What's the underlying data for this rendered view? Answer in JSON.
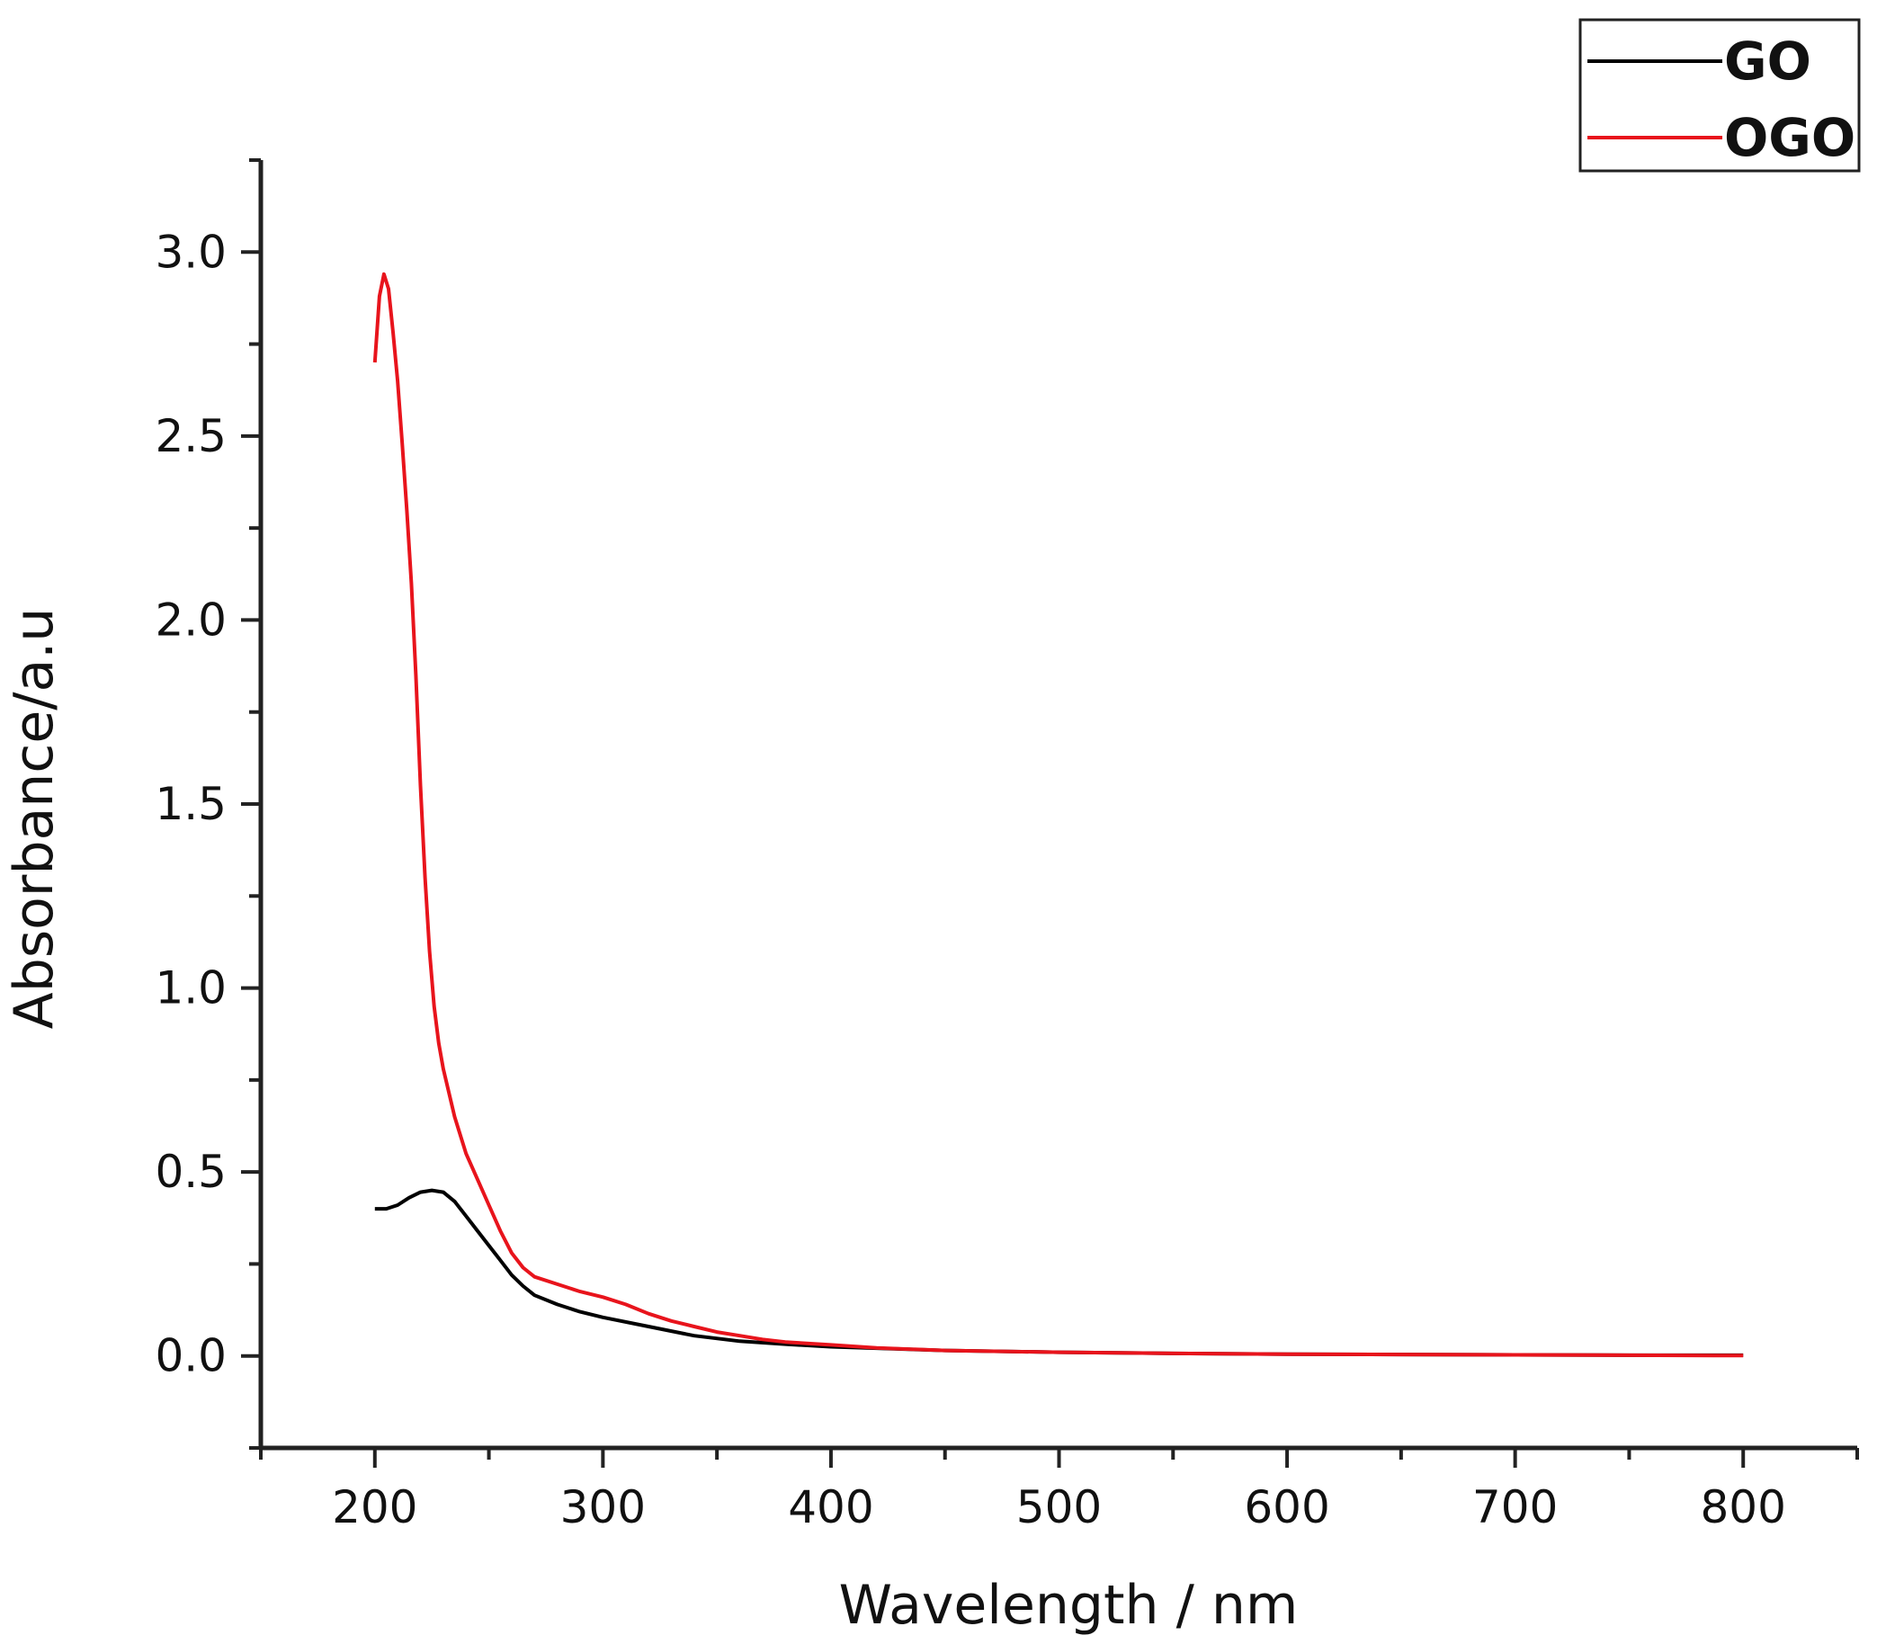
{
  "chart_data": {
    "type": "line",
    "xlabel": "Wavelength  / nm",
    "ylabel": "Absorbance/a.u",
    "xlim": [
      150,
      850
    ],
    "ylim": [
      -0.25,
      3.25
    ],
    "x_ticks": [
      200,
      300,
      400,
      500,
      600,
      700,
      800
    ],
    "x_tick_labels": [
      "200",
      "300",
      "400",
      "500",
      "600",
      "700",
      "800"
    ],
    "y_ticks": [
      0.0,
      0.5,
      1.0,
      1.5,
      2.0,
      2.5,
      3.0
    ],
    "y_tick_labels": [
      "0.0",
      "0.5",
      "1.0",
      "1.5",
      "2.0",
      "2.5",
      "3.0"
    ],
    "grid": false,
    "legend_position": "top-right",
    "series": [
      {
        "name": "GO",
        "color": "#000000",
        "points": [
          [
            200,
            0.4
          ],
          [
            205,
            0.4
          ],
          [
            210,
            0.41
          ],
          [
            215,
            0.43
          ],
          [
            220,
            0.445
          ],
          [
            225,
            0.45
          ],
          [
            230,
            0.445
          ],
          [
            235,
            0.42
          ],
          [
            240,
            0.38
          ],
          [
            245,
            0.34
          ],
          [
            250,
            0.3
          ],
          [
            255,
            0.26
          ],
          [
            260,
            0.22
          ],
          [
            265,
            0.19
          ],
          [
            270,
            0.165
          ],
          [
            280,
            0.14
          ],
          [
            290,
            0.12
          ],
          [
            300,
            0.105
          ],
          [
            320,
            0.08
          ],
          [
            340,
            0.055
          ],
          [
            360,
            0.04
          ],
          [
            380,
            0.032
          ],
          [
            400,
            0.025
          ],
          [
            450,
            0.015
          ],
          [
            500,
            0.01
          ],
          [
            550,
            0.007
          ],
          [
            600,
            0.005
          ],
          [
            650,
            0.004
          ],
          [
            700,
            0.003
          ],
          [
            750,
            0.002
          ],
          [
            800,
            0.002
          ]
        ]
      },
      {
        "name": "OGO",
        "color": "#e8141c",
        "points": [
          [
            200,
            2.7
          ],
          [
            202,
            2.88
          ],
          [
            204,
            2.94
          ],
          [
            206,
            2.9
          ],
          [
            208,
            2.78
          ],
          [
            210,
            2.65
          ],
          [
            212,
            2.48
          ],
          [
            214,
            2.3
          ],
          [
            216,
            2.1
          ],
          [
            218,
            1.85
          ],
          [
            220,
            1.55
          ],
          [
            222,
            1.3
          ],
          [
            224,
            1.1
          ],
          [
            226,
            0.95
          ],
          [
            228,
            0.85
          ],
          [
            230,
            0.78
          ],
          [
            235,
            0.65
          ],
          [
            240,
            0.55
          ],
          [
            245,
            0.48
          ],
          [
            250,
            0.41
          ],
          [
            255,
            0.34
          ],
          [
            260,
            0.28
          ],
          [
            265,
            0.24
          ],
          [
            270,
            0.215
          ],
          [
            280,
            0.195
          ],
          [
            290,
            0.175
          ],
          [
            300,
            0.16
          ],
          [
            310,
            0.14
          ],
          [
            320,
            0.115
          ],
          [
            330,
            0.095
          ],
          [
            340,
            0.08
          ],
          [
            350,
            0.065
          ],
          [
            360,
            0.055
          ],
          [
            370,
            0.045
          ],
          [
            380,
            0.038
          ],
          [
            400,
            0.03
          ],
          [
            420,
            0.022
          ],
          [
            450,
            0.015
          ],
          [
            500,
            0.01
          ],
          [
            550,
            0.007
          ],
          [
            600,
            0.005
          ],
          [
            650,
            0.004
          ],
          [
            700,
            0.003
          ],
          [
            750,
            0.002
          ],
          [
            800,
            0.001
          ]
        ]
      }
    ]
  }
}
